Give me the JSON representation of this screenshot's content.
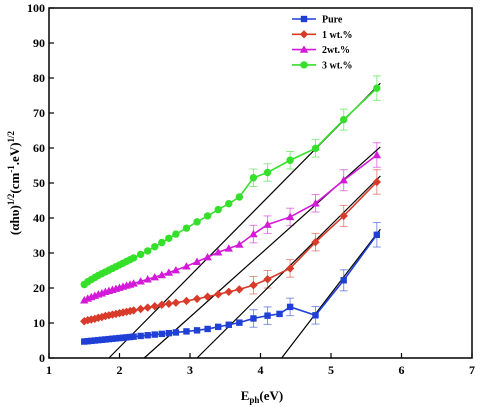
{
  "chart_data": {
    "type": "line",
    "xlabel": {
      "main": "E",
      "sub": "ph",
      "rest": "(eV)"
    },
    "ylabel": {
      "pre": "(αhυ)",
      "sup1": "1/2",
      "mid": "(cm",
      "sup2": "-1",
      "rest": ".eV)",
      "sup3": "1/2"
    },
    "xlim": [
      1,
      7
    ],
    "ylim": [
      0,
      100
    ],
    "xticks": [
      "1",
      "2",
      "3",
      "4",
      "5",
      "6",
      "7"
    ],
    "yticks": [
      "0",
      "10",
      "20",
      "30",
      "40",
      "50",
      "60",
      "70",
      "80",
      "90",
      "100"
    ],
    "legend_position": "top-center",
    "series": [
      {
        "name": "Pure",
        "color": "#1f3fd6",
        "marker": "square",
        "x": [
          1.5,
          1.55,
          1.6,
          1.65,
          1.7,
          1.75,
          1.8,
          1.85,
          1.9,
          1.95,
          2.0,
          2.05,
          2.1,
          2.15,
          2.2,
          2.3,
          2.4,
          2.5,
          2.6,
          2.7,
          2.8,
          2.95,
          3.1,
          3.25,
          3.4,
          3.55,
          3.7,
          3.9,
          4.1,
          4.27,
          4.42,
          4.78,
          5.18,
          5.65
        ],
        "y": [
          4.7,
          4.8,
          4.9,
          5.0,
          5.1,
          5.2,
          5.3,
          5.4,
          5.5,
          5.6,
          5.7,
          5.8,
          5.9,
          6.0,
          6.1,
          6.3,
          6.5,
          6.7,
          6.9,
          7.1,
          7.3,
          7.6,
          7.9,
          8.3,
          8.9,
          9.5,
          10.1,
          11.3,
          12.1,
          12.6,
          14.6,
          12.2,
          22.2,
          35.2
        ]
      },
      {
        "name": "1 wt.%",
        "color": "#d93b2b",
        "marker": "diamond",
        "x": [
          1.5,
          1.55,
          1.6,
          1.65,
          1.7,
          1.75,
          1.8,
          1.85,
          1.9,
          1.95,
          2.0,
          2.05,
          2.1,
          2.15,
          2.2,
          2.3,
          2.4,
          2.5,
          2.6,
          2.7,
          2.8,
          2.95,
          3.1,
          3.25,
          3.4,
          3.55,
          3.7,
          3.9,
          4.1,
          4.42,
          4.78,
          5.18,
          5.65
        ],
        "y": [
          10.5,
          10.8,
          11.0,
          11.2,
          11.5,
          11.7,
          12.0,
          12.2,
          12.4,
          12.6,
          12.8,
          13.0,
          13.2,
          13.4,
          13.6,
          14.0,
          14.4,
          14.8,
          15.2,
          15.5,
          15.8,
          16.3,
          16.9,
          17.5,
          18.2,
          18.9,
          19.6,
          20.8,
          22.5,
          25.6,
          33.1,
          40.6,
          50.3
        ]
      },
      {
        "name": "2wt.%",
        "color": "#d41ad9",
        "marker": "triangle",
        "x": [
          1.5,
          1.55,
          1.6,
          1.65,
          1.7,
          1.75,
          1.8,
          1.85,
          1.9,
          1.95,
          2.0,
          2.05,
          2.1,
          2.15,
          2.2,
          2.3,
          2.4,
          2.5,
          2.6,
          2.7,
          2.8,
          2.95,
          3.1,
          3.25,
          3.4,
          3.55,
          3.7,
          3.9,
          4.1,
          4.42,
          4.78,
          5.18,
          5.65
        ],
        "y": [
          16.5,
          17.0,
          17.4,
          17.8,
          18.2,
          18.5,
          18.9,
          19.2,
          19.5,
          19.8,
          20.1,
          20.4,
          20.7,
          21.0,
          21.3,
          21.9,
          22.5,
          23.1,
          23.7,
          24.4,
          25.1,
          26.2,
          27.5,
          28.8,
          30.2,
          31.3,
          32.4,
          35.4,
          38.1,
          40.3,
          44.2,
          50.8,
          58.0
        ]
      },
      {
        "name": "3 wt.%",
        "color": "#35e02a",
        "marker": "circle",
        "x": [
          1.5,
          1.55,
          1.6,
          1.65,
          1.7,
          1.75,
          1.8,
          1.85,
          1.9,
          1.95,
          2.0,
          2.05,
          2.1,
          2.15,
          2.2,
          2.3,
          2.4,
          2.5,
          2.6,
          2.7,
          2.8,
          2.95,
          3.1,
          3.25,
          3.4,
          3.55,
          3.7,
          3.9,
          4.1,
          4.42,
          4.78,
          5.18,
          5.65
        ],
        "y": [
          21.0,
          21.8,
          22.4,
          23.0,
          23.6,
          24.1,
          24.6,
          25.1,
          25.6,
          26.1,
          26.6,
          27.1,
          27.6,
          28.1,
          28.6,
          29.6,
          30.6,
          31.8,
          33.0,
          34.2,
          35.4,
          37.1,
          38.9,
          40.6,
          42.4,
          44.1,
          46.0,
          51.5,
          53.0,
          56.5,
          59.9,
          68.1,
          77.1
        ]
      }
    ],
    "error_bars": {
      "x": [
        3.9,
        4.1,
        4.42,
        4.78,
        5.18,
        5.65
      ],
      "magnitude": [
        2.5,
        2.5,
        2.5,
        2.5,
        3.0,
        3.5
      ]
    },
    "tangent_lines": [
      {
        "x": [
          4.3,
          5.7
        ],
        "y": [
          0,
          36.8
        ]
      },
      {
        "x": [
          3.1,
          5.7
        ],
        "y": [
          0,
          52.0
        ]
      },
      {
        "x": [
          2.35,
          5.7
        ],
        "y": [
          0,
          60.3
        ]
      },
      {
        "x": [
          1.85,
          5.7
        ],
        "y": [
          0,
          78.5
        ]
      }
    ]
  }
}
